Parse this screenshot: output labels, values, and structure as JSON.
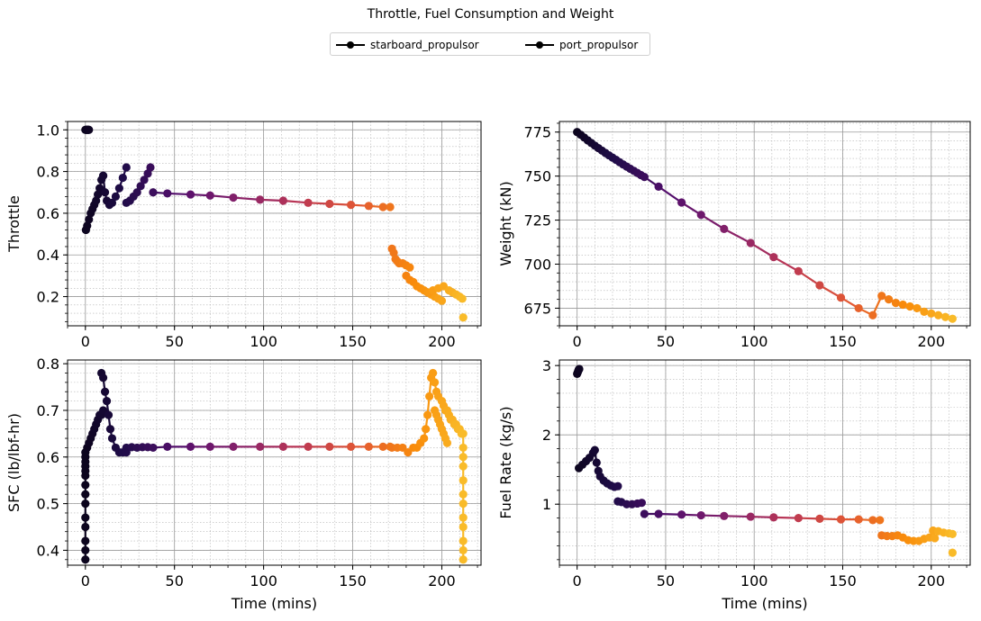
{
  "figure_title": "Throttle, Fuel Consumption and Weight",
  "legend": [
    {
      "label": "starboard_propulsor",
      "color": "#000000"
    },
    {
      "label": "port_propulsor",
      "color": "#000000"
    }
  ],
  "colormap": "inferno",
  "chart_data": [
    {
      "type": "line",
      "name": "throttle",
      "xlabel": "",
      "ylabel": "Throttle",
      "xlim": [
        -10,
        222
      ],
      "ylim": [
        0.06,
        1.04
      ],
      "x_ticks": [
        0,
        50,
        100,
        150,
        200
      ],
      "y_ticks": [
        0.2,
        0.4,
        0.6,
        0.8,
        1.0
      ],
      "x_tick_labels": [
        "0",
        "50",
        "100",
        "150",
        "200"
      ],
      "y_tick_labels": [
        "0.2",
        "0.4",
        "0.6",
        "0.8",
        "1.0"
      ],
      "grid": true,
      "segments": [
        {
          "x": [
            0,
            0.4,
            0.8,
            1.2,
            1.6,
            2.0
          ],
          "y": [
            1.0,
            1.0,
            1.0,
            1.0,
            1.0,
            1.0
          ]
        },
        {
          "x": [
            0.3,
            1,
            2,
            3,
            4,
            5,
            6,
            7,
            8,
            9,
            10
          ],
          "y": [
            0.52,
            0.54,
            0.57,
            0.6,
            0.62,
            0.64,
            0.66,
            0.69,
            0.72,
            0.76,
            0.78
          ]
        },
        {
          "x": [
            10,
            11,
            12,
            13.5,
            15,
            17,
            19,
            21,
            23
          ],
          "y": [
            0.78,
            0.7,
            0.66,
            0.64,
            0.65,
            0.68,
            0.72,
            0.77,
            0.82
          ]
        },
        {
          "x": [
            23,
            25,
            27,
            29,
            31,
            33,
            35,
            36.5
          ],
          "y": [
            0.65,
            0.66,
            0.68,
            0.7,
            0.73,
            0.76,
            0.79,
            0.82
          ]
        },
        {
          "x": [
            38,
            46,
            59,
            70,
            83,
            98,
            111,
            125,
            137,
            149,
            159,
            167,
            171
          ],
          "y": [
            0.7,
            0.695,
            0.69,
            0.685,
            0.675,
            0.665,
            0.66,
            0.65,
            0.645,
            0.64,
            0.635,
            0.63,
            0.63
          ]
        },
        {
          "x": [
            172,
            173,
            174,
            175,
            176,
            178,
            180,
            182
          ],
          "y": [
            0.43,
            0.41,
            0.38,
            0.37,
            0.36,
            0.36,
            0.35,
            0.34
          ]
        },
        {
          "x": [
            180,
            182,
            184,
            186,
            188,
            190,
            192,
            194,
            196,
            198,
            200
          ],
          "y": [
            0.3,
            0.28,
            0.27,
            0.25,
            0.24,
            0.23,
            0.22,
            0.21,
            0.2,
            0.19,
            0.18
          ]
        },
        {
          "x": [
            193,
            195,
            198,
            201,
            204,
            206,
            208,
            210,
            211.5
          ],
          "y": [
            0.22,
            0.23,
            0.24,
            0.25,
            0.23,
            0.22,
            0.21,
            0.2,
            0.19
          ]
        },
        {
          "x": [
            212
          ],
          "y": [
            0.1
          ]
        }
      ]
    },
    {
      "type": "line",
      "name": "weight",
      "xlabel": "",
      "ylabel": "Weight (kN)",
      "xlim": [
        -10,
        222
      ],
      "ylim": [
        665,
        781
      ],
      "x_ticks": [
        0,
        50,
        100,
        150,
        200
      ],
      "y_ticks": [
        675,
        700,
        725,
        750,
        775
      ],
      "x_tick_labels": [
        "0",
        "50",
        "100",
        "150",
        "200"
      ],
      "y_tick_labels": [
        "675",
        "700",
        "725",
        "750",
        "775"
      ],
      "grid": true,
      "segments": [
        {
          "x": [
            0,
            2,
            4,
            6,
            8,
            10,
            12,
            14,
            16,
            18,
            20,
            22,
            24,
            26,
            28,
            30,
            32,
            34,
            36,
            38,
            46,
            59,
            70,
            83,
            98,
            111,
            125,
            137,
            149,
            159,
            167,
            172,
            176,
            180,
            184,
            188,
            192,
            196,
            200,
            204,
            208,
            212
          ],
          "y": [
            775,
            773.5,
            771.9,
            770.3,
            768.8,
            767.3,
            765.9,
            764.5,
            763.1,
            761.8,
            760.5,
            759.2,
            757.9,
            756.6,
            755.4,
            754.2,
            753.0,
            751.8,
            750.6,
            749.5,
            744,
            735,
            728,
            720,
            712,
            704,
            696,
            688,
            681,
            675,
            671,
            682,
            680,
            678,
            677,
            676,
            675,
            673,
            672,
            671,
            670,
            669
          ]
        }
      ]
    },
    {
      "type": "line",
      "name": "sfc",
      "xlabel": "Time (mins)",
      "ylabel": "SFC (lb/lbf-hr)",
      "xlim": [
        -10,
        222
      ],
      "ylim": [
        0.368,
        0.808
      ],
      "x_ticks": [
        0,
        50,
        100,
        150,
        200
      ],
      "y_ticks": [
        0.4,
        0.5,
        0.6,
        0.7,
        0.8
      ],
      "x_tick_labels": [
        "0",
        "50",
        "100",
        "150",
        "200"
      ],
      "y_tick_labels": [
        "0.4",
        "0.5",
        "0.6",
        "0.7",
        "0.8"
      ],
      "grid": true,
      "segments": [
        {
          "x": [
            0,
            0,
            0,
            0,
            0,
            0,
            0,
            0,
            0,
            0,
            0,
            0,
            0,
            0
          ],
          "y": [
            0.38,
            0.4,
            0.42,
            0.45,
            0.47,
            0.5,
            0.52,
            0.54,
            0.56,
            0.57,
            0.58,
            0.59,
            0.6,
            0.61
          ]
        },
        {
          "x": [
            1,
            2,
            3,
            4,
            5,
            6,
            7,
            8,
            9,
            10
          ],
          "y": [
            0.62,
            0.63,
            0.64,
            0.65,
            0.66,
            0.67,
            0.68,
            0.69,
            0.69,
            0.7
          ]
        },
        {
          "x": [
            9,
            10,
            11,
            12,
            13,
            14,
            15,
            17,
            19,
            21,
            23
          ],
          "y": [
            0.78,
            0.77,
            0.74,
            0.72,
            0.69,
            0.66,
            0.64,
            0.62,
            0.61,
            0.61,
            0.61
          ]
        },
        {
          "x": [
            23,
            26,
            29,
            32,
            35,
            38,
            46,
            59,
            70,
            83,
            98,
            111,
            125,
            137,
            149,
            159,
            167,
            171
          ],
          "y": [
            0.62,
            0.621,
            0.62,
            0.621,
            0.621,
            0.62,
            0.622,
            0.622,
            0.622,
            0.622,
            0.622,
            0.622,
            0.622,
            0.622,
            0.622,
            0.622,
            0.622,
            0.622
          ]
        },
        {
          "x": [
            172,
            175,
            178,
            181,
            184,
            186,
            188,
            190,
            191,
            192,
            193,
            194
          ],
          "y": [
            0.62,
            0.62,
            0.62,
            0.61,
            0.62,
            0.62,
            0.63,
            0.64,
            0.66,
            0.69,
            0.73,
            0.77
          ]
        },
        {
          "x": [
            195,
            196,
            197,
            198,
            200,
            201,
            202,
            203,
            204,
            205,
            206,
            207,
            208,
            209,
            210,
            211
          ],
          "y": [
            0.78,
            0.76,
            0.74,
            0.73,
            0.72,
            0.71,
            0.7,
            0.7,
            0.69,
            0.68,
            0.68,
            0.67,
            0.67,
            0.66,
            0.66,
            0.65
          ]
        },
        {
          "x": [
            196,
            197,
            198,
            199,
            200,
            201,
            202,
            203
          ],
          "y": [
            0.7,
            0.69,
            0.68,
            0.67,
            0.66,
            0.65,
            0.64,
            0.63
          ]
        },
        {
          "x": [
            212,
            212,
            212,
            212,
            212,
            212,
            212,
            212,
            212,
            212,
            212,
            212
          ],
          "y": [
            0.65,
            0.62,
            0.6,
            0.58,
            0.55,
            0.52,
            0.5,
            0.47,
            0.45,
            0.42,
            0.4,
            0.38
          ]
        }
      ]
    },
    {
      "type": "line",
      "name": "fuel_rate",
      "xlabel": "Time (mins)",
      "ylabel": "Fuel Rate (kg/s)",
      "xlim": [
        -10,
        222
      ],
      "ylim": [
        0.12,
        3.08
      ],
      "x_ticks": [
        0,
        50,
        100,
        150,
        200
      ],
      "y_ticks": [
        1,
        2,
        3
      ],
      "x_tick_labels": [
        "0",
        "50",
        "100",
        "150",
        "200"
      ],
      "y_tick_labels": [
        "1",
        "2",
        "3"
      ],
      "grid": true,
      "segments": [
        {
          "x": [
            0,
            0.3,
            0.6,
            0.9,
            1.2
          ],
          "y": [
            2.88,
            2.9,
            2.92,
            2.94,
            2.95
          ]
        },
        {
          "x": [
            1,
            3,
            5,
            7,
            9,
            10,
            11,
            12,
            13,
            15,
            17,
            19,
            21,
            23
          ],
          "y": [
            1.52,
            1.57,
            1.62,
            1.67,
            1.74,
            1.78,
            1.6,
            1.48,
            1.4,
            1.34,
            1.3,
            1.27,
            1.25,
            1.26
          ]
        },
        {
          "x": [
            23,
            25,
            28,
            31,
            34,
            36.5
          ],
          "y": [
            1.04,
            1.03,
            1.0,
            1.0,
            1.01,
            1.02
          ]
        },
        {
          "x": [
            38,
            46,
            59,
            70,
            83,
            98,
            111,
            125,
            137,
            149,
            159,
            167,
            171
          ],
          "y": [
            0.86,
            0.86,
            0.85,
            0.84,
            0.83,
            0.82,
            0.81,
            0.8,
            0.79,
            0.78,
            0.78,
            0.77,
            0.77
          ]
        },
        {
          "x": [
            172,
            175,
            178,
            181,
            184,
            187,
            190,
            193,
            196,
            199,
            202
          ],
          "y": [
            0.55,
            0.54,
            0.54,
            0.55,
            0.52,
            0.48,
            0.47,
            0.47,
            0.5,
            0.52,
            0.51
          ]
        },
        {
          "x": [
            201,
            204,
            207,
            210,
            212
          ],
          "y": [
            0.62,
            0.61,
            0.59,
            0.58,
            0.57
          ]
        },
        {
          "x": [
            212
          ],
          "y": [
            0.3
          ]
        }
      ]
    }
  ]
}
